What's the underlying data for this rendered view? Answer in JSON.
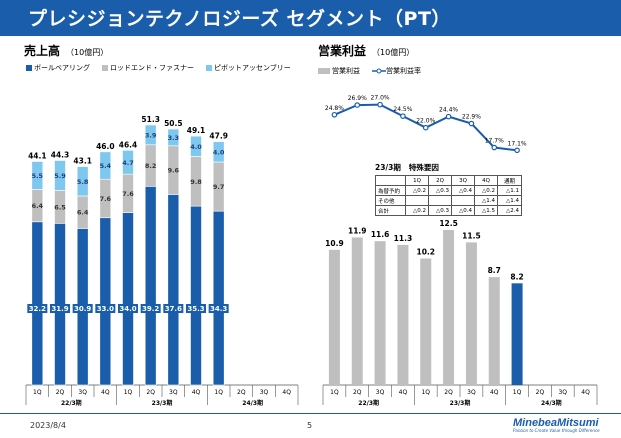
{
  "header": {
    "title": "プレシジョンテクノロジーズ セグメント（PT）"
  },
  "left_chart": {
    "title": "売上高",
    "unit": "（10億円）",
    "legend": [
      {
        "label": "ボールベアリング",
        "color": "#1a5dab"
      },
      {
        "label": "ロッドエンド・ファスナー",
        "color": "#bfbfbf"
      },
      {
        "label": "ピボットアッセンブリー",
        "color": "#7ec8f0"
      }
    ]
  },
  "right_chart": {
    "title": "営業利益",
    "unit": "（10億円）",
    "legend": [
      {
        "label": "営業利益",
        "color": "#bfbfbf"
      },
      {
        "label": "営業利益率",
        "color": "#1a5dab"
      }
    ]
  },
  "special_table": {
    "title": "23/3期",
    "subtitle": "特殊要因",
    "headers": [
      "",
      "1Q",
      "2Q",
      "3Q",
      "4Q",
      "通期"
    ],
    "rows": [
      [
        "為替予約",
        "△0.2",
        "△0.3",
        "△0.4",
        "△0.2",
        "△1.1"
      ],
      [
        "その他",
        "",
        "",
        "",
        "△1.4",
        "△1.4"
      ],
      [
        "合計",
        "△0.2",
        "△0.3",
        "△0.4",
        "△1.5",
        "△2.4"
      ]
    ]
  },
  "footer": {
    "date": "2023/8/4",
    "page": "5",
    "logo": "MinebeaMitsumi",
    "tagline": "Passion to Create Value through Difference"
  },
  "chart_data": [
    {
      "type": "bar",
      "title": "売上高",
      "stacked": true,
      "quarters": [
        "1Q",
        "2Q",
        "3Q",
        "4Q",
        "1Q",
        "2Q",
        "3Q",
        "4Q",
        "1Q",
        "2Q",
        "3Q",
        "4Q"
      ],
      "periods": [
        "22/3期",
        "23/3期",
        "24/3期"
      ],
      "series": [
        {
          "name": "ボールベアリング",
          "values": [
            32.2,
            31.9,
            30.9,
            33.0,
            34.0,
            39.2,
            37.6,
            35.3,
            34.3,
            null,
            null,
            null
          ]
        },
        {
          "name": "ロッドエンド・ファスナー",
          "values": [
            6.4,
            6.5,
            6.4,
            7.6,
            7.6,
            8.2,
            9.6,
            9.8,
            9.7,
            null,
            null,
            null
          ]
        },
        {
          "name": "ピボットアッセンブリー",
          "values": [
            5.5,
            5.9,
            5.8,
            5.4,
            4.7,
            3.9,
            3.3,
            4.0,
            4.0,
            null,
            null,
            null
          ]
        }
      ],
      "totals": [
        44.1,
        44.3,
        43.1,
        46.0,
        46.4,
        51.3,
        50.5,
        49.1,
        47.9,
        null,
        null,
        null
      ],
      "ylim": [
        0,
        60
      ]
    },
    {
      "type": "bar",
      "title": "営業利益",
      "quarters": [
        "1Q",
        "2Q",
        "3Q",
        "4Q",
        "1Q",
        "2Q",
        "3Q",
        "4Q",
        "1Q",
        "2Q",
        "3Q",
        "4Q"
      ],
      "periods": [
        "22/3期",
        "23/3期",
        "24/3期"
      ],
      "series": [
        {
          "name": "営業利益",
          "values": [
            10.9,
            11.9,
            11.6,
            11.3,
            10.2,
            12.5,
            11.5,
            8.7,
            8.2,
            null,
            null,
            null
          ]
        }
      ],
      "ylim": [
        0,
        16
      ],
      "line": {
        "name": "営業利益率",
        "values": [
          24.8,
          26.9,
          27.0,
          24.5,
          22.0,
          24.4,
          22.9,
          17.7,
          17.1
        ],
        "labels": [
          "24.8%",
          "26.9%",
          "27.0%",
          "24.5%",
          "22.0%",
          "24.4%",
          "22.9%",
          "17.7%",
          "17.1%"
        ],
        "ylim": [
          15,
          28
        ]
      }
    }
  ]
}
